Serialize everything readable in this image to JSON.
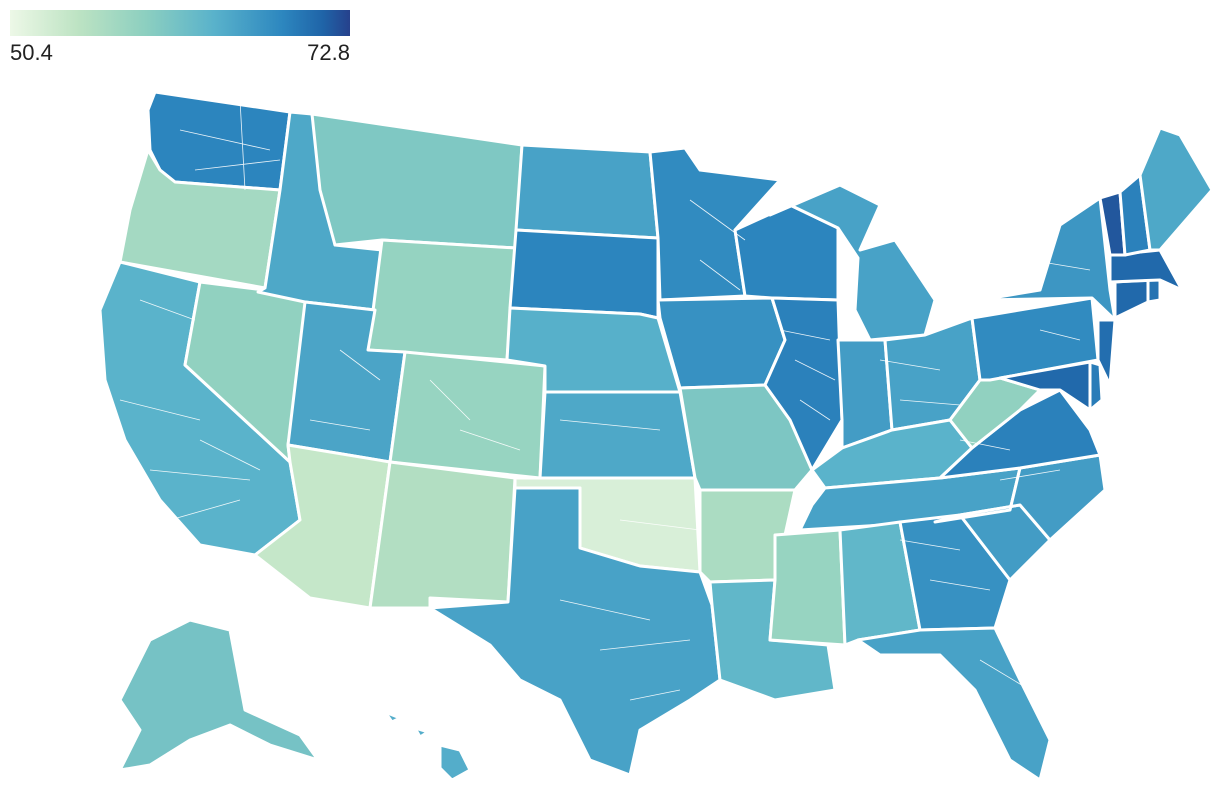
{
  "legend": {
    "min_label": "50.4",
    "max_label": "72.8",
    "min_value": 50.4,
    "max_value": 72.8,
    "colors": [
      "#edf8e7",
      "#bde3c3",
      "#8ccfc0",
      "#59b2cb",
      "#2d87bf",
      "#1f64a8",
      "#26418c"
    ]
  },
  "map": {
    "regions": [
      {
        "name": "washington",
        "value": 65.5
      },
      {
        "name": "oregon",
        "value": 56.0
      },
      {
        "name": "california",
        "value": 61.5
      },
      {
        "name": "nevada",
        "value": 57.5
      },
      {
        "name": "idaho",
        "value": 62.5
      },
      {
        "name": "montana",
        "value": 58.8
      },
      {
        "name": "wyoming",
        "value": 57.2
      },
      {
        "name": "utah",
        "value": 62.8
      },
      {
        "name": "arizona",
        "value": 53.5
      },
      {
        "name": "colorado",
        "value": 57.0
      },
      {
        "name": "new-mexico",
        "value": 55.0
      },
      {
        "name": "north-dakota",
        "value": 63.0
      },
      {
        "name": "south-dakota",
        "value": 65.5
      },
      {
        "name": "nebraska",
        "value": 61.8
      },
      {
        "name": "kansas",
        "value": 62.5
      },
      {
        "name": "oklahoma",
        "value": 52.0
      },
      {
        "name": "texas",
        "value": 63.0
      },
      {
        "name": "minnesota",
        "value": 65.0
      },
      {
        "name": "iowa",
        "value": 64.5
      },
      {
        "name": "missouri",
        "value": 59.0
      },
      {
        "name": "arkansas",
        "value": 55.5
      },
      {
        "name": "louisiana",
        "value": 61.0
      },
      {
        "name": "wisconsin",
        "value": 65.5
      },
      {
        "name": "illinois",
        "value": 66.0
      },
      {
        "name": "michigan",
        "value": 63.0
      },
      {
        "name": "indiana",
        "value": 63.5
      },
      {
        "name": "ohio",
        "value": 63.0
      },
      {
        "name": "kentucky",
        "value": 61.5
      },
      {
        "name": "tennessee",
        "value": 63.0
      },
      {
        "name": "mississippi",
        "value": 57.0
      },
      {
        "name": "alabama",
        "value": 61.0
      },
      {
        "name": "georgia",
        "value": 64.5
      },
      {
        "name": "florida",
        "value": 63.0
      },
      {
        "name": "south-carolina",
        "value": 63.5
      },
      {
        "name": "north-carolina",
        "value": 63.5
      },
      {
        "name": "virginia",
        "value": 66.0
      },
      {
        "name": "west-virginia",
        "value": 57.5
      },
      {
        "name": "pennsylvania",
        "value": 65.0
      },
      {
        "name": "new-york",
        "value": 64.0
      },
      {
        "name": "maryland",
        "value": 68.5
      },
      {
        "name": "new-jersey",
        "value": 68.0
      },
      {
        "name": "delaware",
        "value": 66.5
      },
      {
        "name": "connecticut",
        "value": 68.5
      },
      {
        "name": "rhode-island",
        "value": 67.5
      },
      {
        "name": "massachusetts",
        "value": 68.5
      },
      {
        "name": "vermont",
        "value": 70.5
      },
      {
        "name": "new-hampshire",
        "value": 66.0
      },
      {
        "name": "maine",
        "value": 62.5
      },
      {
        "name": "alaska",
        "value": 59.5
      },
      {
        "name": "hawaii",
        "value": 62.0
      }
    ]
  }
}
